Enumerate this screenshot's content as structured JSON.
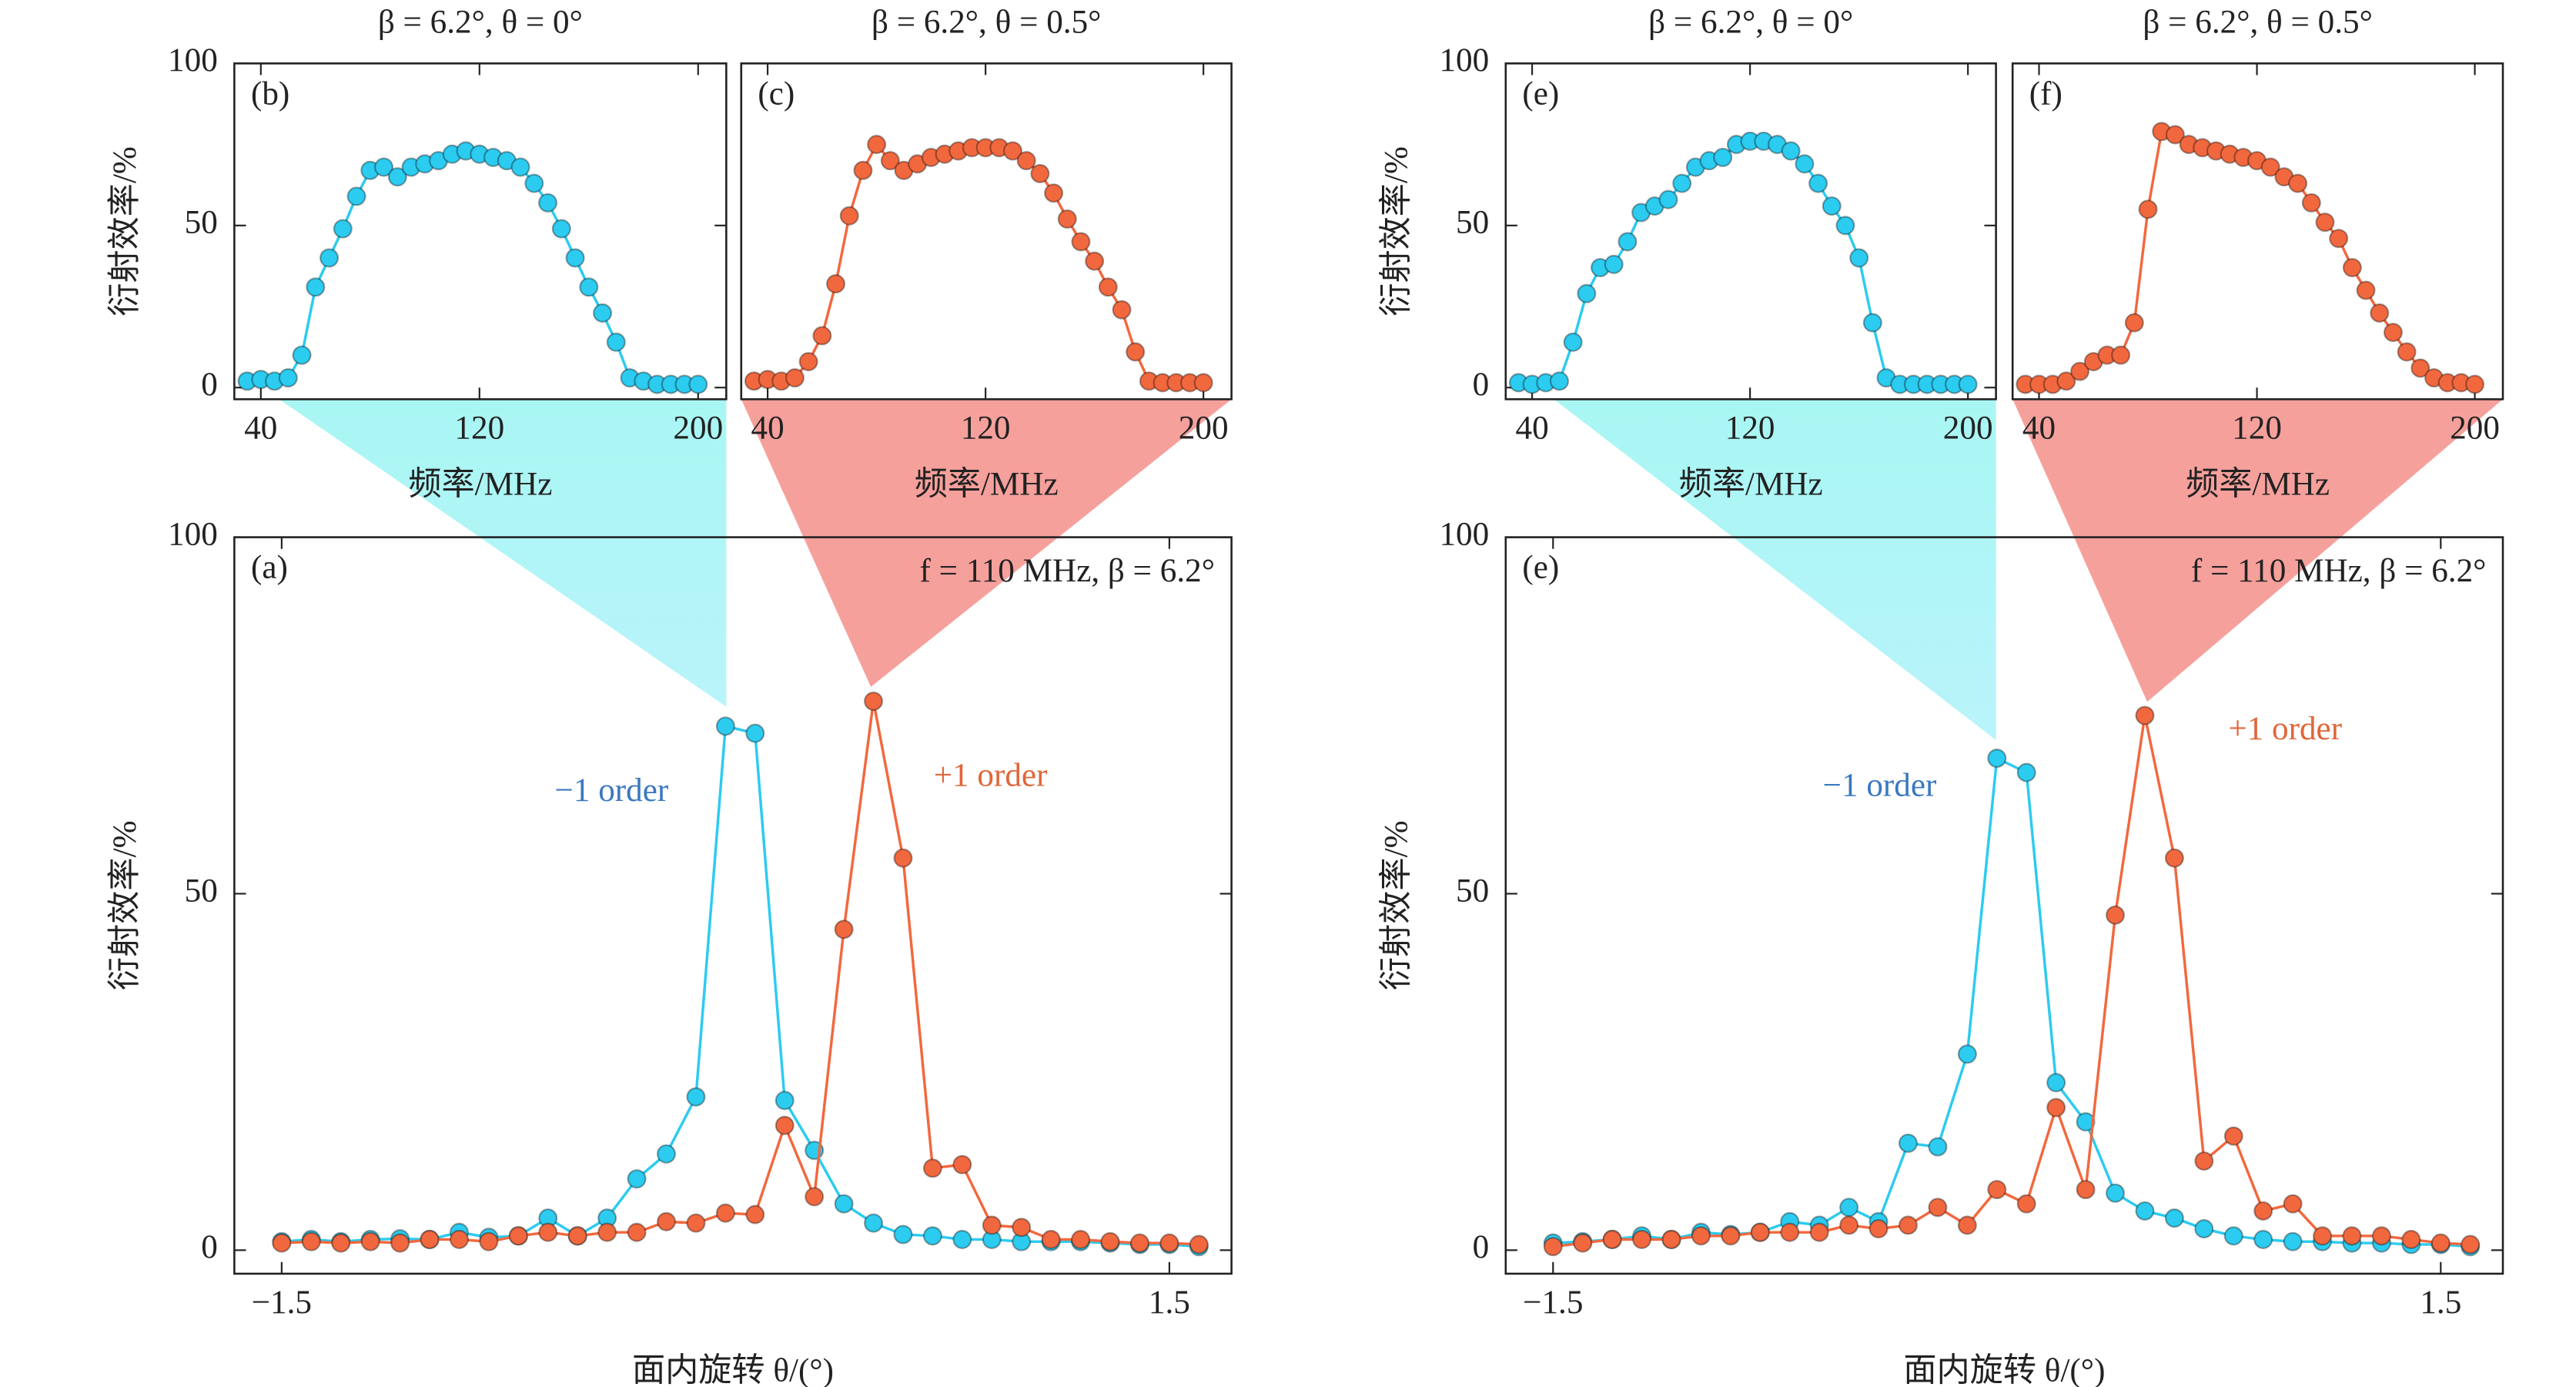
{
  "chart_data": [
    {
      "type": "line",
      "title": "β = 6.2°, θ = 0°",
      "panel_label": "(b)",
      "xlabel": "频率/MHz",
      "ylabel": "衍射效率/%",
      "x": [
        35,
        40,
        45,
        50,
        55,
        60,
        65,
        70,
        75,
        80,
        85,
        90,
        95,
        100,
        105,
        110,
        115,
        120,
        125,
        130,
        135,
        140,
        145,
        150,
        155,
        160,
        165,
        170,
        175,
        180,
        185,
        190,
        195,
        200
      ],
      "xlim": [
        30.3,
        210.3
      ],
      "ylim": [
        -3.6,
        100
      ],
      "xticks": [
        40,
        120,
        200
      ],
      "yticks": [
        0,
        50,
        100
      ],
      "series": [
        {
          "color": "#2ccbf0",
          "values": [
            2,
            2.5,
            2,
            3,
            10,
            31,
            40,
            49,
            59,
            67,
            68,
            65,
            68,
            69,
            70,
            72,
            73,
            72,
            71,
            70,
            68,
            63,
            57,
            49,
            40,
            31,
            23,
            14,
            3,
            2,
            1,
            1,
            1,
            1
          ]
        }
      ]
    },
    {
      "type": "line",
      "title": "β = 6.2°, θ = 0.5°",
      "panel_label": "(c)",
      "xlabel": "频率/MHz",
      "x": [
        35,
        40,
        45,
        50,
        55,
        60,
        65,
        70,
        75,
        80,
        85,
        90,
        95,
        100,
        105,
        110,
        115,
        120,
        125,
        130,
        135,
        140,
        145,
        150,
        155,
        160,
        165,
        170,
        175,
        180,
        185,
        190,
        195,
        200
      ],
      "xlim": [
        30.3,
        210.3
      ],
      "ylim": [
        -3.6,
        100
      ],
      "xticks": [
        40,
        120,
        200
      ],
      "series": [
        {
          "color": "#f2683e",
          "values": [
            2,
            2.5,
            2,
            3,
            8,
            16,
            32,
            53,
            67,
            75,
            70,
            67,
            69,
            71,
            72,
            73,
            74,
            74,
            74,
            73,
            70,
            66,
            60,
            52,
            45,
            39,
            31,
            24,
            11,
            2,
            1.5,
            1.5,
            1.5,
            1.5
          ]
        }
      ]
    },
    {
      "type": "line",
      "title": "β = 6.2°, θ = 0°",
      "panel_label": "(e)",
      "xlabel": "频率/MHz",
      "ylabel": "衍射效率/%",
      "x": [
        35,
        40,
        45,
        50,
        55,
        60,
        65,
        70,
        75,
        80,
        85,
        90,
        95,
        100,
        105,
        110,
        115,
        120,
        125,
        130,
        135,
        140,
        145,
        150,
        155,
        160,
        165,
        170,
        175,
        180,
        185,
        190,
        195,
        200
      ],
      "xlim": [
        30.3,
        210.3
      ],
      "ylim": [
        -3.6,
        100
      ],
      "xticks": [
        40,
        120,
        200
      ],
      "yticks": [
        0,
        50,
        100
      ],
      "series": [
        {
          "color": "#2ccbf0",
          "values": [
            1.5,
            1,
            1.5,
            2,
            14,
            29,
            37,
            38,
            45,
            54,
            56,
            58,
            63,
            68,
            70,
            71,
            75,
            76,
            76,
            75,
            73,
            69,
            63,
            56,
            50,
            40,
            20,
            3,
            1,
            1,
            1,
            1,
            1,
            1
          ]
        }
      ]
    },
    {
      "type": "line",
      "title": "β = 6.2°, θ = 0.5°",
      "panel_label": "(f)",
      "xlabel": "频率/MHz",
      "x": [
        35,
        40,
        45,
        50,
        55,
        60,
        65,
        70,
        75,
        80,
        85,
        90,
        95,
        100,
        105,
        110,
        115,
        120,
        125,
        130,
        135,
        140,
        145,
        150,
        155,
        160,
        165,
        170,
        175,
        180,
        185,
        190,
        195,
        200
      ],
      "xlim": [
        30.3,
        210.3
      ],
      "ylim": [
        -3.6,
        100
      ],
      "xticks": [
        40,
        120,
        200
      ],
      "series": [
        {
          "color": "#f2683e",
          "values": [
            1,
            1,
            1,
            2,
            5,
            8,
            10,
            10,
            20,
            55,
            79,
            78,
            75,
            74,
            73,
            72,
            71,
            70,
            68,
            65,
            63,
            57,
            51,
            46,
            37,
            30,
            23,
            17,
            11,
            6,
            3,
            1.5,
            1.5,
            1
          ]
        }
      ]
    },
    {
      "type": "line",
      "panel_label": "(a)",
      "annotation": "f = 110 MHz, β = 6.2°",
      "xlabel": "面内旋转 θ/(°)",
      "ylabel": "衍射效率/%",
      "x": [
        -1.5,
        -1.4,
        -1.3,
        -1.2,
        -1.1,
        -1.0,
        -0.9,
        -0.8,
        -0.7,
        -0.6,
        -0.5,
        -0.4,
        -0.3,
        -0.2,
        -0.1,
        0,
        0.1,
        0.2,
        0.3,
        0.4,
        0.5,
        0.6,
        0.7,
        0.8,
        0.9,
        1.0,
        1.1,
        1.2,
        1.3,
        1.4,
        1.5,
        1.6
      ],
      "xlim": [
        -1.66,
        1.71
      ],
      "ylim": [
        -3.3,
        100
      ],
      "xticks": [
        {
          "value": -1.5,
          "label": "−1.5"
        },
        1.5
      ],
      "yticks": [
        0,
        50,
        100
      ],
      "series": [
        {
          "name": "−1 order",
          "color": "#2ccbf0",
          "label_color": "#3a78c0",
          "values": [
            1.2,
            1.5,
            1.2,
            1.5,
            1.6,
            1.5,
            2.5,
            1.8,
            2.0,
            4.5,
            2.0,
            4.5,
            10,
            13.5,
            21.5,
            73.5,
            72.5,
            21,
            14,
            6.5,
            3.8,
            2.2,
            2.0,
            1.5,
            1.5,
            1.2,
            1.2,
            1.2,
            1.0,
            0.8,
            0.8,
            0.5
          ]
        },
        {
          "name": "+1 order",
          "color": "#f2683e",
          "label_color": "#e0663a",
          "values": [
            1.0,
            1.2,
            1.0,
            1.2,
            1.0,
            1.5,
            1.5,
            1.2,
            2.0,
            2.5,
            2.0,
            2.5,
            2.5,
            4.0,
            3.8,
            5.2,
            5.0,
            17.5,
            7.5,
            45,
            77,
            55,
            11.5,
            12,
            3.5,
            3.2,
            1.5,
            1.5,
            1.2,
            1.0,
            1.0,
            0.8
          ]
        }
      ]
    },
    {
      "type": "line",
      "panel_label": "(e)",
      "annotation": "f = 110 MHz, β = 6.2°",
      "xlabel": "面内旋转 θ/(°)",
      "ylabel": "衍射效率/%",
      "x": [
        -1.5,
        -1.4,
        -1.3,
        -1.2,
        -1.1,
        -1.0,
        -0.9,
        -0.8,
        -0.7,
        -0.6,
        -0.5,
        -0.4,
        -0.3,
        -0.2,
        -0.1,
        0,
        0.1,
        0.2,
        0.3,
        0.4,
        0.5,
        0.6,
        0.7,
        0.8,
        0.9,
        1.0,
        1.1,
        1.2,
        1.3,
        1.4,
        1.5,
        1.6
      ],
      "xlim": [
        -1.66,
        1.71
      ],
      "ylim": [
        -3.3,
        100
      ],
      "xticks": [
        {
          "value": -1.5,
          "label": "−1.5"
        },
        1.5
      ],
      "yticks": [
        0,
        50,
        100
      ],
      "series": [
        {
          "name": "−1 order",
          "color": "#2ccbf0",
          "label_color": "#3a78c0",
          "values": [
            1.0,
            1.2,
            1.5,
            2.0,
            1.5,
            2.5,
            2.2,
            2.5,
            4.0,
            3.5,
            6.0,
            4.0,
            15,
            14.5,
            27.5,
            69,
            67,
            23.5,
            18,
            8,
            5.5,
            4.5,
            3.0,
            2.0,
            1.5,
            1.2,
            1.2,
            1.0,
            1.0,
            0.8,
            0.8,
            0.5
          ]
        },
        {
          "name": "+1 order",
          "color": "#f2683e",
          "label_color": "#e0663a",
          "values": [
            0.5,
            1.0,
            1.5,
            1.5,
            1.5,
            2.0,
            2.0,
            2.5,
            2.5,
            2.5,
            3.5,
            3.0,
            3.5,
            6.0,
            3.5,
            8.5,
            6.5,
            20,
            8.5,
            47,
            75,
            55,
            12.5,
            16,
            5.5,
            6.5,
            2.0,
            2.0,
            2.0,
            1.5,
            1.0,
            0.8
          ]
        }
      ]
    }
  ]
}
